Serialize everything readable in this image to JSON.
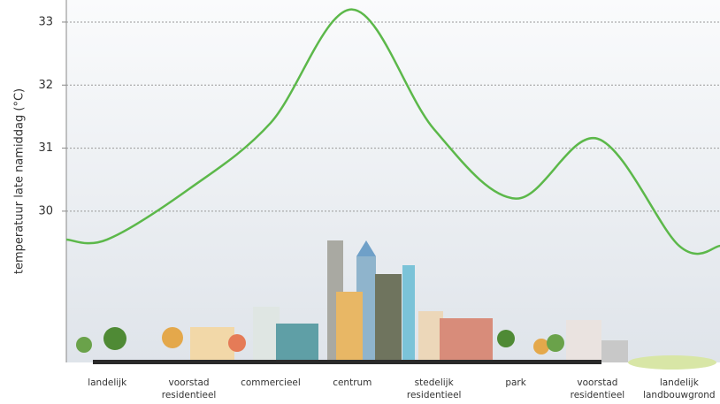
{
  "chart_data": {
    "type": "line",
    "y_label": "temperatuur late namiddag (°C)",
    "categories": [
      "landelijk",
      "voorstad residentieel",
      "commercieel",
      "centrum",
      "stedelijk residentieel",
      "park",
      "voorstad residentieel",
      "landelijk landbouwgrond"
    ],
    "values": [
      29.55,
      30.35,
      31.4,
      33.2,
      31.3,
      30.2,
      31.15,
      29.45
    ],
    "color": "#5cb84a",
    "ylim": [
      27.6,
      33.35
    ],
    "yticks": [
      30,
      31,
      32,
      33
    ],
    "grid": true
  }
}
